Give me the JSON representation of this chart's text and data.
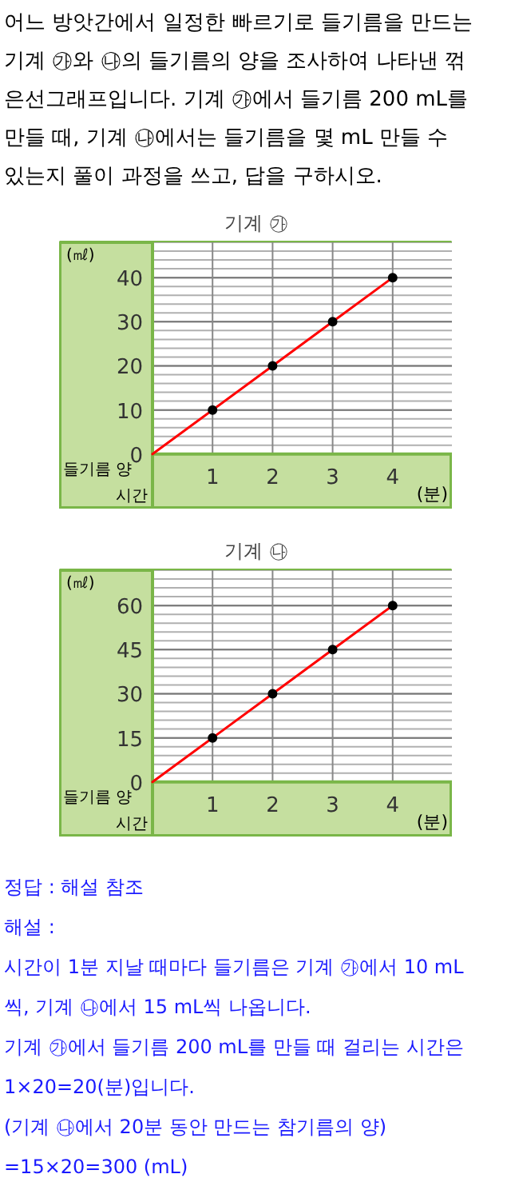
{
  "chart_data": [
    {
      "type": "other",
      "annotations": [
        "어느 방앗간에서 일정한 빠르기로 들기름을 만드는",
        "기계 ㉮와 ㉯의 들기름의 양을 조사하여 나타낸 꺾",
        "은선그래프입니다. 기계 ㉮에서 들기름 200 mL를",
        "만들 때, 기계 ㉯에서는 들기름을 몇 mL 만들 수",
        "있는지 풀이 과정을 쓰고, 답을 구하시오."
      ]
    },
    {
      "type": "line",
      "title": "기계 ㉮",
      "xlabel": "(분)",
      "ylabel": "(㎖)",
      "annotations": [
        "들기름 양",
        "시간"
      ],
      "xlim": [
        0,
        5
      ],
      "ylim": [
        0,
        48
      ],
      "xticks": [
        1,
        2,
        3,
        4
      ],
      "yticks": [
        0,
        10,
        20,
        30,
        40
      ],
      "grid": true,
      "series": [
        {
          "type": "line",
          "color": "#ff0000",
          "x": [
            0,
            1,
            2,
            3,
            4
          ],
          "values": [
            0,
            10,
            20,
            30,
            40
          ]
        },
        {
          "type": "scatter",
          "color": "#000000",
          "x": [
            1,
            2,
            3,
            4
          ],
          "values": [
            10,
            20,
            30,
            40
          ]
        }
      ]
    },
    {
      "type": "line",
      "title": "기계 ㉯",
      "xlabel": "(분)",
      "ylabel": "(㎖)",
      "annotations": [
        "들기름 양",
        "시간"
      ],
      "xlim": [
        0,
        5
      ],
      "ylim": [
        0,
        72
      ],
      "xticks": [
        1,
        2,
        3,
        4
      ],
      "yticks": [
        0,
        15,
        30,
        45,
        60
      ],
      "grid": true,
      "series": [
        {
          "type": "line",
          "color": "#ff0000",
          "x": [
            0,
            1,
            2,
            3,
            4
          ],
          "values": [
            0,
            15,
            30,
            45,
            60
          ]
        },
        {
          "type": "scatter",
          "color": "#000000",
          "x": [
            1,
            2,
            3,
            4
          ],
          "values": [
            15,
            30,
            45,
            60
          ]
        }
      ]
    },
    {
      "type": "other",
      "annotations": [
        "정답 : 해설 참조",
        "해설 :",
        "시간이 1분 지날 때마다 들기름은 기계 ㉮에서 10 mL",
        "씩, 기계 ㉯에서 15 mL씩 나옵니다.",
        "기계 ㉮에서 들기름 200 mL를 만들 때 걸리는 시간은",
        "1×20=20(분)입니다.",
        "(기계 ㉯에서 20분 동안 만드는 참기름의 양)",
        "=15×20=300 (mL)"
      ]
    }
  ]
}
